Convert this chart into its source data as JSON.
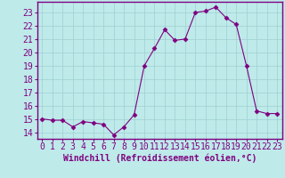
{
  "x": [
    0,
    1,
    2,
    3,
    4,
    5,
    6,
    7,
    8,
    9,
    10,
    11,
    12,
    13,
    14,
    15,
    16,
    17,
    18,
    19,
    20,
    21,
    22,
    23
  ],
  "y": [
    15.0,
    14.9,
    14.9,
    14.4,
    14.8,
    14.7,
    14.6,
    13.8,
    14.4,
    15.3,
    19.0,
    20.3,
    21.7,
    20.9,
    21.0,
    23.0,
    23.1,
    23.4,
    22.6,
    22.1,
    19.0,
    15.6,
    15.4,
    15.4
  ],
  "line_color": "#7f007f",
  "marker": "D",
  "marker_size": 2.5,
  "bg_color": "#beeaea",
  "grid_color": "#9fcfcf",
  "xlabel": "Windchill (Refroidissement éolien,°C)",
  "xlabel_fontsize": 7,
  "tick_fontsize": 7,
  "ylim": [
    13.5,
    23.8
  ],
  "xlim": [
    -0.5,
    23.5
  ],
  "yticks": [
    14,
    15,
    16,
    17,
    18,
    19,
    20,
    21,
    22,
    23
  ],
  "xticks": [
    0,
    1,
    2,
    3,
    4,
    5,
    6,
    7,
    8,
    9,
    10,
    11,
    12,
    13,
    14,
    15,
    16,
    17,
    18,
    19,
    20,
    21,
    22,
    23
  ],
  "spine_color": "#7f007f",
  "label_color": "#7f007f"
}
